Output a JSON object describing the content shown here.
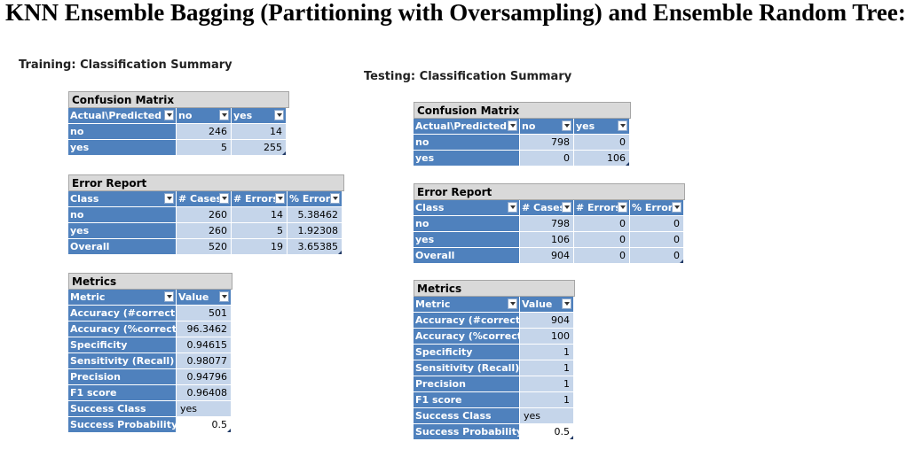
{
  "title": "KNN Ensemble Bagging (Partitioning with Oversampling) and Ensemble Random Tree:",
  "training": {
    "label": "Training: Classification Summary",
    "confusion": {
      "title": "Confusion Matrix",
      "headers": [
        "Actual\\Predicted",
        "no",
        "yes"
      ],
      "rows": [
        {
          "label": "no",
          "values": [
            "246",
            "14"
          ]
        },
        {
          "label": "yes",
          "values": [
            "5",
            "255"
          ]
        }
      ]
    },
    "error": {
      "title": "Error Report",
      "headers": [
        "Class",
        "# Cases",
        "# Errors",
        "% Error"
      ],
      "rows": [
        {
          "label": "no",
          "values": [
            "260",
            "14",
            "5.38462"
          ]
        },
        {
          "label": "yes",
          "values": [
            "260",
            "5",
            "1.92308"
          ]
        },
        {
          "label": "Overall",
          "values": [
            "520",
            "19",
            "3.65385"
          ]
        }
      ]
    },
    "metrics": {
      "title": "Metrics",
      "headers": [
        "Metric",
        "Value"
      ],
      "rows": [
        {
          "label": "Accuracy (#correct)",
          "value": "501"
        },
        {
          "label": "Accuracy (%correct)",
          "value": "96.3462"
        },
        {
          "label": "Specificity",
          "value": "0.94615"
        },
        {
          "label": "Sensitivity (Recall)",
          "value": "0.98077"
        },
        {
          "label": "Precision",
          "value": "0.94796"
        },
        {
          "label": "F1 score",
          "value": "0.96408"
        },
        {
          "label": "Success Class",
          "value": "yes"
        },
        {
          "label": "Success Probability",
          "value": "0.5"
        }
      ]
    }
  },
  "testing": {
    "label": "Testing: Classification Summary",
    "confusion": {
      "title": "Confusion Matrix",
      "headers": [
        "Actual\\Predicted",
        "no",
        "yes"
      ],
      "rows": [
        {
          "label": "no",
          "values": [
            "798",
            "0"
          ]
        },
        {
          "label": "yes",
          "values": [
            "0",
            "106"
          ]
        }
      ]
    },
    "error": {
      "title": "Error Report",
      "headers": [
        "Class",
        "# Cases",
        "# Errors",
        "% Error"
      ],
      "rows": [
        {
          "label": "no",
          "values": [
            "798",
            "0",
            "0"
          ]
        },
        {
          "label": "yes",
          "values": [
            "106",
            "0",
            "0"
          ]
        },
        {
          "label": "Overall",
          "values": [
            "904",
            "0",
            "0"
          ]
        }
      ]
    },
    "metrics": {
      "title": "Metrics",
      "headers": [
        "Metric",
        "Value"
      ],
      "rows": [
        {
          "label": "Accuracy (#correct)",
          "value": "904"
        },
        {
          "label": "Accuracy (%correct)",
          "value": "100"
        },
        {
          "label": "Specificity",
          "value": "1"
        },
        {
          "label": "Sensitivity (Recall)",
          "value": "1"
        },
        {
          "label": "Precision",
          "value": "1"
        },
        {
          "label": "F1 score",
          "value": "1"
        },
        {
          "label": "Success Class",
          "value": "yes"
        },
        {
          "label": "Success Probability",
          "value": "0.5"
        }
      ]
    }
  },
  "colors": {
    "header_blue": "#4f81bd",
    "cell_light_blue": "#c5d5ea",
    "title_gray": "#d9d9d9"
  }
}
